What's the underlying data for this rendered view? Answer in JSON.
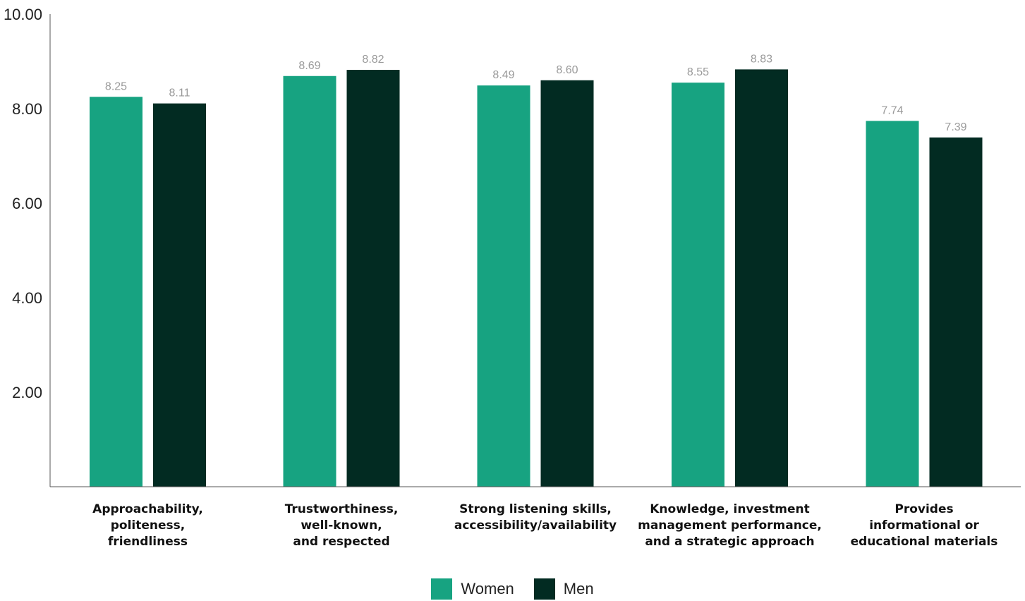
{
  "chart_data": {
    "type": "bar",
    "categories": [
      [
        "Approachability,",
        "politeness,",
        "friendliness"
      ],
      [
        "Trustworthiness,",
        "well-known,",
        "and respected"
      ],
      [
        "Strong listening skills,",
        "accessibility/availability"
      ],
      [
        "Knowledge, investment",
        "management performance,",
        "and a strategic approach"
      ],
      [
        "Provides",
        "informational or",
        "educational materials"
      ]
    ],
    "series": [
      {
        "name": "Women",
        "color": "#17a381",
        "values": [
          8.25,
          8.69,
          8.49,
          8.55,
          7.74
        ],
        "labels": [
          "8.25",
          "8.69",
          "8.49",
          "8.55",
          "7.74"
        ]
      },
      {
        "name": "Men",
        "color": "#022b22",
        "values": [
          8.11,
          8.82,
          8.6,
          8.83,
          7.39
        ],
        "labels": [
          "8.11",
          "8.82",
          "8.60",
          "8.83",
          "7.39"
        ]
      }
    ],
    "yticks": [
      "2.00",
      "4.00",
      "6.00",
      "8.00",
      "10.00"
    ],
    "ylim": [
      0,
      10
    ],
    "grid": false,
    "legend_position": "bottom-center"
  }
}
